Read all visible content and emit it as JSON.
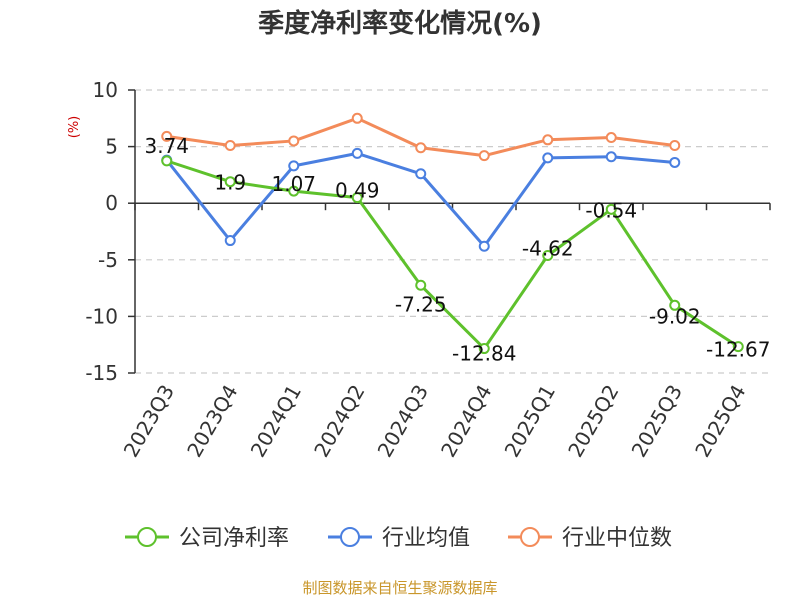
{
  "chart_data": {
    "type": "line",
    "title": "季度净利率变化情况(%)",
    "ylabel": "(%)",
    "xlabel": "",
    "categories": [
      "2023Q3",
      "2023Q4",
      "2024Q1",
      "2024Q2",
      "2024Q3",
      "2024Q4",
      "2025Q1",
      "2025Q2",
      "2025Q3",
      "2025Q4"
    ],
    "ylim": [
      -15,
      10
    ],
    "yticks": [
      10,
      5,
      0,
      -5,
      -10,
      -15
    ],
    "grid": true,
    "legend_position": "bottom",
    "series": [
      {
        "name": "公司净利率",
        "color": "#5ec12c",
        "values": [
          3.74,
          1.9,
          1.07,
          0.49,
          -7.25,
          -12.84,
          -4.62,
          -0.54,
          -9.02,
          -12.67
        ],
        "labels": [
          "3.74",
          "1.9",
          "1.07",
          "0.49",
          "-7.25",
          "-12.84",
          "-4.62",
          "-0.54",
          "-9.02",
          "-12.67"
        ]
      },
      {
        "name": "行业均值",
        "color": "#4a7fe0",
        "values": [
          3.8,
          -3.3,
          3.3,
          4.4,
          2.6,
          -3.8,
          4.0,
          4.1,
          3.6,
          null
        ]
      },
      {
        "name": "行业中位数",
        "color": "#f38b5a",
        "values": [
          5.9,
          5.1,
          5.5,
          7.5,
          4.9,
          4.2,
          5.6,
          5.8,
          5.1,
          null
        ]
      }
    ],
    "source": "制图数据来自恒生聚源数据库"
  }
}
